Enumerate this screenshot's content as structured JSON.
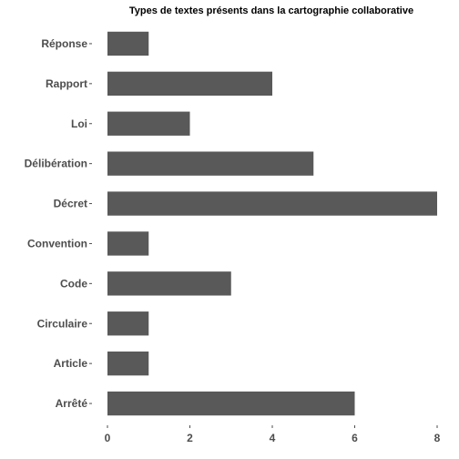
{
  "chart_data": {
    "type": "bar",
    "orientation": "horizontal",
    "title": "Types de textes présents dans la cartographie collaborative",
    "xlabel": "",
    "ylabel": "",
    "categories": [
      "Réponse",
      "Rapport",
      "Loi",
      "Délibération",
      "Décret",
      "Convention",
      "Code",
      "Circulaire",
      "Article",
      "Arrêté"
    ],
    "values": [
      1,
      4,
      2,
      5,
      8,
      1,
      3,
      1,
      1,
      6
    ],
    "xlim": [
      0,
      8
    ],
    "xticks": [
      0,
      2,
      4,
      6,
      8
    ],
    "grid": false,
    "legend": "none",
    "bar_color": "#595959"
  }
}
